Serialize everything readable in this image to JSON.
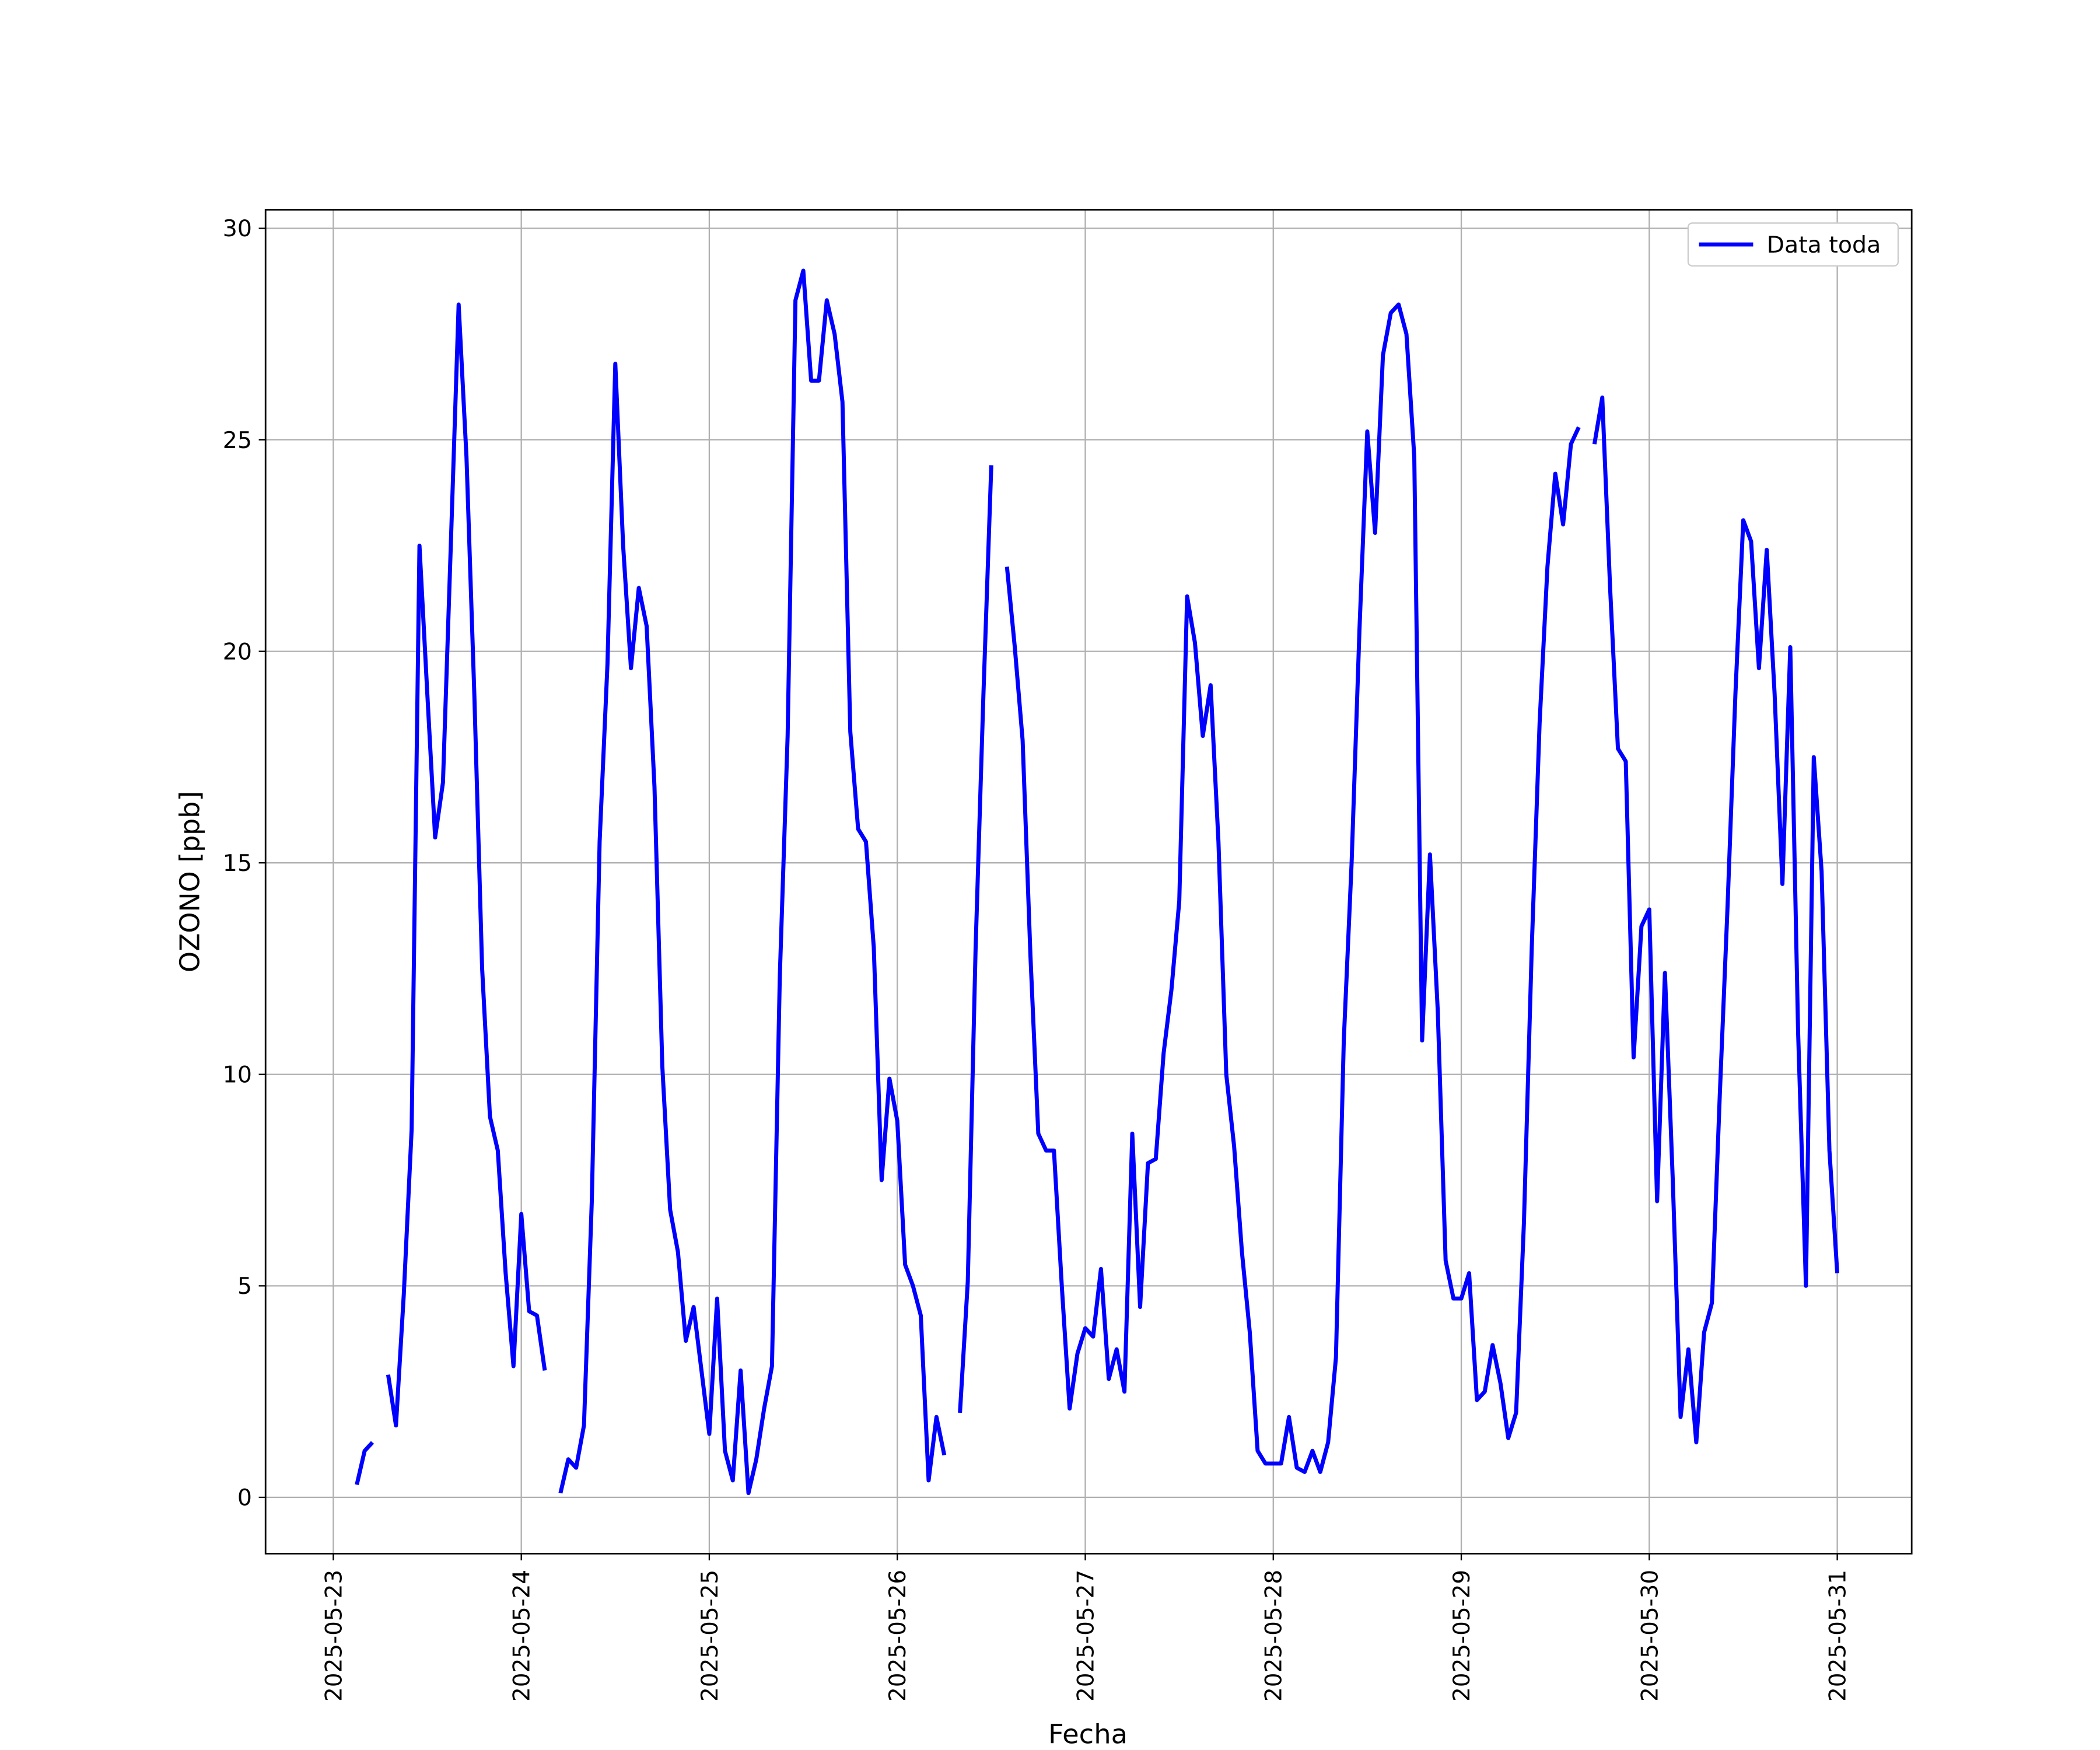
{
  "chart_data": {
    "type": "line",
    "xlabel": "Fecha",
    "ylabel": "OZONO [ppb]",
    "x": [
      "2025-05-23 03:00",
      "2025-05-23 04:00",
      "2025-05-23 05:00",
      "2025-05-23 06:00",
      "2025-05-23 07:00",
      "2025-05-23 08:00",
      "2025-05-23 09:00",
      "2025-05-23 10:00",
      "2025-05-23 11:00",
      "2025-05-23 12:00",
      "2025-05-23 13:00",
      "2025-05-23 14:00",
      "2025-05-23 15:00",
      "2025-05-23 16:00",
      "2025-05-23 17:00",
      "2025-05-23 18:00",
      "2025-05-23 19:00",
      "2025-05-23 20:00",
      "2025-05-23 21:00",
      "2025-05-23 22:00",
      "2025-05-23 23:00",
      "2025-05-24 00:00",
      "2025-05-24 01:00",
      "2025-05-24 02:00",
      "2025-05-24 03:00",
      "2025-05-24 04:00",
      "2025-05-24 05:00",
      "2025-05-24 06:00",
      "2025-05-24 07:00",
      "2025-05-24 08:00",
      "2025-05-24 09:00",
      "2025-05-24 10:00",
      "2025-05-24 11:00",
      "2025-05-24 12:00",
      "2025-05-24 13:00",
      "2025-05-24 14:00",
      "2025-05-24 15:00",
      "2025-05-24 16:00",
      "2025-05-24 17:00",
      "2025-05-24 18:00",
      "2025-05-24 19:00",
      "2025-05-24 20:00",
      "2025-05-24 21:00",
      "2025-05-24 22:00",
      "2025-05-24 23:00",
      "2025-05-25 00:00",
      "2025-05-25 01:00",
      "2025-05-25 02:00",
      "2025-05-25 03:00",
      "2025-05-25 04:00",
      "2025-05-25 05:00",
      "2025-05-25 06:00",
      "2025-05-25 07:00",
      "2025-05-25 08:00",
      "2025-05-25 09:00",
      "2025-05-25 10:00",
      "2025-05-25 11:00",
      "2025-05-25 12:00",
      "2025-05-25 13:00",
      "2025-05-25 14:00",
      "2025-05-25 15:00",
      "2025-05-25 16:00",
      "2025-05-25 17:00",
      "2025-05-25 18:00",
      "2025-05-25 19:00",
      "2025-05-25 20:00",
      "2025-05-25 21:00",
      "2025-05-25 22:00",
      "2025-05-25 23:00",
      "2025-05-26 00:00",
      "2025-05-26 01:00",
      "2025-05-26 02:00",
      "2025-05-26 03:00",
      "2025-05-26 04:00",
      "2025-05-26 05:00",
      "2025-05-26 06:00",
      "2025-05-26 07:00",
      "2025-05-26 08:00",
      "2025-05-26 09:00",
      "2025-05-26 10:00",
      "2025-05-26 11:00",
      "2025-05-26 12:00",
      "2025-05-26 13:00",
      "2025-05-26 14:00",
      "2025-05-26 15:00",
      "2025-05-26 16:00",
      "2025-05-26 17:00",
      "2025-05-26 18:00",
      "2025-05-26 19:00",
      "2025-05-26 20:00",
      "2025-05-26 21:00",
      "2025-05-26 22:00",
      "2025-05-26 23:00",
      "2025-05-27 00:00",
      "2025-05-27 01:00",
      "2025-05-27 02:00",
      "2025-05-27 03:00",
      "2025-05-27 04:00",
      "2025-05-27 05:00",
      "2025-05-27 06:00",
      "2025-05-27 07:00",
      "2025-05-27 08:00",
      "2025-05-27 09:00",
      "2025-05-27 10:00",
      "2025-05-27 11:00",
      "2025-05-27 12:00",
      "2025-05-27 13:00",
      "2025-05-27 14:00",
      "2025-05-27 15:00",
      "2025-05-27 16:00",
      "2025-05-27 17:00",
      "2025-05-27 18:00",
      "2025-05-27 19:00",
      "2025-05-27 20:00",
      "2025-05-27 21:00",
      "2025-05-27 22:00",
      "2025-05-27 23:00",
      "2025-05-28 00:00",
      "2025-05-28 01:00",
      "2025-05-28 02:00",
      "2025-05-28 03:00",
      "2025-05-28 04:00",
      "2025-05-28 05:00",
      "2025-05-28 06:00",
      "2025-05-28 07:00",
      "2025-05-28 08:00",
      "2025-05-28 09:00",
      "2025-05-28 10:00",
      "2025-05-28 11:00",
      "2025-05-28 12:00",
      "2025-05-28 13:00",
      "2025-05-28 14:00",
      "2025-05-28 15:00",
      "2025-05-28 16:00",
      "2025-05-28 17:00",
      "2025-05-28 18:00",
      "2025-05-28 19:00",
      "2025-05-28 20:00",
      "2025-05-28 21:00",
      "2025-05-28 22:00",
      "2025-05-28 23:00",
      "2025-05-29 00:00",
      "2025-05-29 01:00",
      "2025-05-29 02:00",
      "2025-05-29 03:00",
      "2025-05-29 04:00",
      "2025-05-29 05:00",
      "2025-05-29 06:00",
      "2025-05-29 07:00",
      "2025-05-29 08:00",
      "2025-05-29 09:00",
      "2025-05-29 10:00",
      "2025-05-29 11:00",
      "2025-05-29 12:00",
      "2025-05-29 13:00",
      "2025-05-29 14:00",
      "2025-05-29 15:00",
      "2025-05-29 16:00",
      "2025-05-29 17:00",
      "2025-05-29 18:00",
      "2025-05-29 19:00",
      "2025-05-29 20:00",
      "2025-05-29 21:00",
      "2025-05-29 22:00",
      "2025-05-29 23:00",
      "2025-05-30 00:00",
      "2025-05-30 01:00",
      "2025-05-30 02:00",
      "2025-05-30 03:00",
      "2025-05-30 04:00",
      "2025-05-30 05:00",
      "2025-05-30 06:00",
      "2025-05-30 07:00",
      "2025-05-30 08:00",
      "2025-05-30 09:00",
      "2025-05-30 10:00",
      "2025-05-30 11:00",
      "2025-05-30 12:00",
      "2025-05-30 13:00",
      "2025-05-30 14:00",
      "2025-05-30 15:00",
      "2025-05-30 16:00",
      "2025-05-30 17:00",
      "2025-05-30 18:00",
      "2025-05-30 19:00",
      "2025-05-30 20:00",
      "2025-05-30 21:00",
      "2025-05-30 22:00",
      "2025-05-30 23:00",
      "2025-05-31 00:00"
    ],
    "series": [
      {
        "name": "Data toda",
        "color": "#0000ff",
        "values": [
          0.3,
          1.1,
          1.3,
          null,
          2.9,
          1.7,
          4.8,
          8.7,
          22.5,
          19,
          15.6,
          16.9,
          22.5,
          28.2,
          24.6,
          19,
          12.5,
          9,
          8.2,
          5.3,
          3.1,
          6.7,
          4.4,
          4.3,
          3.0,
          null,
          0.1,
          0.9,
          0.7,
          1.7,
          7.0,
          15.5,
          19.7,
          26.8,
          22.5,
          19.6,
          21.5,
          20.6,
          16.8,
          10.2,
          6.8,
          5.8,
          3.7,
          4.5,
          3.0,
          1.5,
          4.7,
          1.1,
          0.4,
          3.0,
          0.1,
          0.9,
          2.1,
          3.1,
          12.3,
          18.0,
          28.3,
          29.0,
          26.4,
          26.4,
          28.3,
          27.5,
          25.9,
          18.1,
          15.8,
          15.5,
          13.0,
          7.5,
          9.9,
          8.9,
          5.5,
          5.0,
          4.3,
          0.4,
          1.9,
          1.0,
          null,
          2.0,
          5.1,
          13.0,
          19.0,
          24.4,
          null,
          22.0,
          20.1,
          17.9,
          12.8,
          8.6,
          8.2,
          8.2,
          5.0,
          2.1,
          3.4,
          4.0,
          3.8,
          5.4,
          2.8,
          3.5,
          2.5,
          8.6,
          4.5,
          7.9,
          8.0,
          10.5,
          12.0,
          14.1,
          21.3,
          20.2,
          18.0,
          19.2,
          15.5,
          10.0,
          8.3,
          5.8,
          3.9,
          1.1,
          0.8,
          0.8,
          0.8,
          1.9,
          0.7,
          0.6,
          1.1,
          0.6,
          1.3,
          3.3,
          10.8,
          15.0,
          20.5,
          25.2,
          22.8,
          27.0,
          28.0,
          28.2,
          27.5,
          24.6,
          10.8,
          15.2,
          11.5,
          5.6,
          4.7,
          4.7,
          5.3,
          2.3,
          2.5,
          3.6,
          2.7,
          1.4,
          2.0,
          6.5,
          13.0,
          18.3,
          22.0,
          24.2,
          23.0,
          24.9,
          25.3,
          null,
          24.9,
          26.0,
          21.5,
          17.7,
          17.4,
          10.4,
          13.5,
          13.9,
          7.0,
          12.4,
          7.5,
          1.9,
          3.5,
          1.3,
          3.9,
          4.6,
          9.5,
          14.0,
          19.0,
          23.1,
          22.6,
          19.6,
          22.4,
          19.0,
          14.5,
          20.1,
          11.0,
          5.0,
          17.5,
          14.8,
          8.2,
          5.3
        ]
      }
    ],
    "xlim": [
      "2025-05-22 15:21",
      "2025-05-31 09:30"
    ],
    "xticks": [
      "2025-05-23",
      "2025-05-24",
      "2025-05-25",
      "2025-05-26",
      "2025-05-27",
      "2025-05-28",
      "2025-05-29",
      "2025-05-30",
      "2025-05-31"
    ],
    "ylim": [
      -1.33,
      30.44
    ],
    "yticks": [
      0,
      5,
      10,
      15,
      20,
      25,
      30
    ],
    "grid": true,
    "legend": "upper right"
  }
}
